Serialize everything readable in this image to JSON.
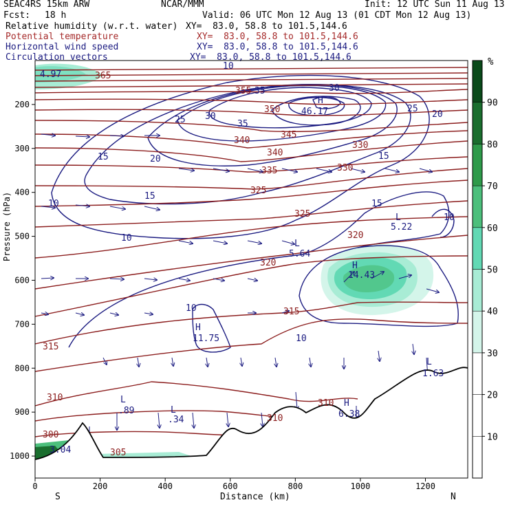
{
  "header": {
    "model": "SEAC4RS 15km ARW",
    "org": "NCAR/MMM",
    "init": "Init: 12 UTC Sun 11 Aug 13",
    "fcst_label": "Fcst:",
    "fcst_value": "18 h",
    "valid": "Valid: 06 UTC Mon 12 Aug 13 (01 CDT Mon 12 Aug 13)",
    "fields": [
      {
        "name": "Relative humidity (w.r.t. water)",
        "xy": "XY=  83.0, 58.8 to 101.5,144.6",
        "color": "#000000"
      },
      {
        "name": "Potential temperature",
        "xy": "XY=  83.0, 58.8 to 101.5,144.6",
        "color": "#a52a2a"
      },
      {
        "name": "Horizontal wind speed",
        "xy": "XY=  83.0, 58.8 to 101.5,144.6",
        "color": "#1a1a80"
      },
      {
        "name": "Circulation vectors",
        "xy": "XY=  83.0, 58.8 to 101.5,144.6",
        "color": "#1a1a80"
      }
    ]
  },
  "chart_data": {
    "type": "contour",
    "xlabel": "Distance (km)",
    "ylabel": "Pressure (hPa)",
    "x_ticks": [
      "0",
      "200",
      "400",
      "600",
      "800",
      "1000",
      "1200"
    ],
    "x_end_labels": {
      "left": "S",
      "right": "N"
    },
    "y_ticks": [
      "200",
      "300",
      "400",
      "500",
      "600",
      "700",
      "800",
      "900",
      "1000"
    ],
    "xlim": [
      0,
      1330
    ],
    "ylim": [
      1050,
      100
    ],
    "colorbar": {
      "unit": "%",
      "labels": [
        "10",
        "20",
        "30",
        "40",
        "50",
        "60",
        "70",
        "80",
        "90"
      ],
      "colors": [
        "#ffffff",
        "#ffffff",
        "#ffffff",
        "#d4f5ea",
        "#a8ecd5",
        "#62d9b4",
        "#4cbf7c",
        "#2e9a4a",
        "#1a6e2e",
        "#0a4a1a"
      ]
    },
    "theta_labels": [
      "365",
      "355",
      "350",
      "345",
      "340",
      "340",
      "335",
      "330",
      "330",
      "325",
      "325",
      "320",
      "320",
      "315",
      "315",
      "310",
      "310",
      "310",
      "305",
      "300"
    ],
    "wind_labels": [
      "15",
      "20",
      "25",
      "30",
      "35",
      "35",
      "30",
      "25",
      "20",
      "15",
      "15",
      "10",
      "10",
      "10",
      "10",
      "10",
      "10",
      "15"
    ],
    "extrema": [
      {
        "kind": "H",
        "value": "46.17"
      },
      {
        "kind": "L",
        "value": "5.22"
      },
      {
        "kind": "L",
        "value": "5.64"
      },
      {
        "kind": "H",
        "value": "14.43"
      },
      {
        "kind": "H",
        "value": "11.75"
      },
      {
        "kind": "L",
        "value": ".89"
      },
      {
        "kind": "L",
        "value": ".34"
      },
      {
        "kind": "H",
        "value": "6.38"
      },
      {
        "kind": "L",
        "value": "1.63"
      }
    ],
    "rh_labels": [
      "4.97",
      "3.04"
    ]
  }
}
